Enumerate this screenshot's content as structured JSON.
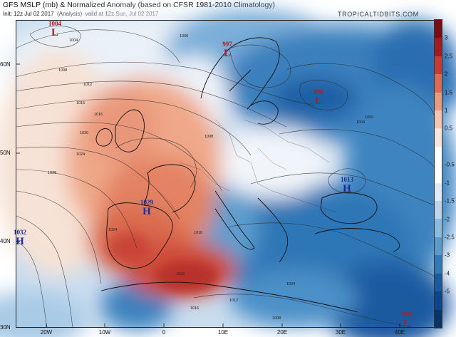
{
  "header": {
    "title": "GFS MSLP (mb) & Normalized Anomaly (based on CFSR 1981-2010 Climatology)",
    "init_label": "Init: 12z Jul 02 2017",
    "analysis_label": "(Analysis)",
    "valid_label": "valid at 12z Sun, Jul 02 2017",
    "brand": "TROPICALTIDBITS.COM"
  },
  "axes": {
    "lat_labels": [
      "60N",
      "50N",
      "40N",
      "30N"
    ],
    "lon_labels": [
      "20W",
      "10W",
      "0",
      "10E",
      "20E",
      "30E",
      "40E"
    ]
  },
  "colorbar": {
    "ticks": [
      "3",
      "2.5",
      "2",
      "1.5",
      "1",
      "0.5",
      "-0.5",
      "-1",
      "-1.5",
      "-2",
      "-2.5",
      "-3",
      "-4",
      "-5"
    ],
    "colors": [
      "#7a0c12",
      "#a8191b",
      "#c93a32",
      "#dd6a52",
      "#ec9a7b",
      "#f6c5ab",
      "#fbe5d6",
      "#ffffff",
      "#ffffff",
      "#dfeaf5",
      "#bcd5ea",
      "#8dbbdd",
      "#5b9bcc",
      "#3279b7",
      "#1a5ba0",
      "#0d4588",
      "#083466"
    ]
  },
  "pressure_centers": [
    {
      "type": "L",
      "value": "1004",
      "color": "#c0151b"
    },
    {
      "type": "L",
      "value": "997",
      "color": "#c0151b"
    },
    {
      "type": "L",
      "value": "998",
      "color": "#c0151b"
    },
    {
      "type": "H",
      "value": "1013",
      "color": "#1c2c9c"
    },
    {
      "type": "H",
      "value": "1029",
      "color": "#1c2c9c"
    },
    {
      "type": "H",
      "value": "1032",
      "color": "#1c2c9c"
    },
    {
      "type": "L",
      "value": "998",
      "color": "#c0151b"
    }
  ],
  "isobar_labels": [
    "1000",
    "1004",
    "1008",
    "1012",
    "1016",
    "1016",
    "1020",
    "1024",
    "1028",
    "1024",
    "1016",
    "1020",
    "1016",
    "1012",
    "1008",
    "1004",
    "1008",
    "1000",
    "1004"
  ]
}
